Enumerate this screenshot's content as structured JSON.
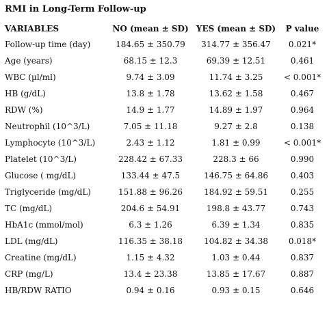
{
  "title": "RMI in Long-Term Follow-up",
  "columns": [
    "VARIABLES",
    "NO (mean ± SD)",
    "YES (mean ± SD)",
    "P value"
  ],
  "rows": [
    {
      "variable": "Follow-up time (day)",
      "no": "184.65 ± 350.79",
      "yes": "314.77 ± 356.47",
      "p": "0.021*"
    },
    {
      "variable": "Age (years)",
      "no": "68.15 ± 12.3",
      "yes": "69.39 ± 12.51",
      "p": "0.461"
    },
    {
      "variable": "WBC (µl/ml)",
      "no": "9.74 ± 3.09",
      "yes": "11.74 ± 3.25",
      "p": "< 0.001*"
    },
    {
      "variable": "HB (g/dL)",
      "no": "13.8 ± 1.78",
      "yes": "13.62 ± 1.58",
      "p": "0.467"
    },
    {
      "variable": "RDW (%)",
      "no": "14.9 ± 1.77",
      "yes": "14.89 ± 1.97",
      "p": "0.964"
    },
    {
      "variable": "Neutrophil (10^3/L)",
      "no": "7.05 ± 11.18",
      "yes": "9.27 ± 2.8",
      "p": "0.138"
    },
    {
      "variable": "Lymphocyte (10^3/L)",
      "no": "2.43 ± 1.12",
      "yes": "1.81 ± 0.99",
      "p": "< 0.001*"
    },
    {
      "variable": "Platelet (10^3/L)",
      "no": "228.42 ± 67.33",
      "yes": "228.3 ± 66",
      "p": "0.990"
    },
    {
      "variable": "Glucose ( mg/dL)",
      "no": "133.44 ± 47.5",
      "yes": "146.75 ± 64.86",
      "p": "0.403"
    },
    {
      "variable": "Triglyceride (mg/dL)",
      "no": "151.88 ± 96.26",
      "yes": "184.92 ± 59.51",
      "p": "0.255"
    },
    {
      "variable": "TC (mg/dL)",
      "no": "204.6 ± 54.91",
      "yes": "198.8 ± 43.77",
      "p": "0.743"
    },
    {
      "variable": "HbA1c (mmol/mol)",
      "no": "6.3 ± 1.26",
      "yes": "6.39 ± 1.34",
      "p": "0.835"
    },
    {
      "variable": "LDL (mg/dL)",
      "no": "116.35 ± 38.18",
      "yes": "104.82 ± 34.38",
      "p": "0.018*"
    },
    {
      "variable": "Creatine (mg/dL)",
      "no": "1.15 ± 4.32",
      "yes": "1.03 ± 0.44",
      "p": "0.837"
    },
    {
      "variable": "CRP (mg/L)",
      "no": "13.4 ± 23.38",
      "yes": "13.85 ± 17.67",
      "p": "0.887"
    },
    {
      "variable": "HB/RDW RATIO",
      "no": "0.94 ± 0.16",
      "yes": "0.93 ± 0.15",
      "p": "0.646"
    }
  ]
}
